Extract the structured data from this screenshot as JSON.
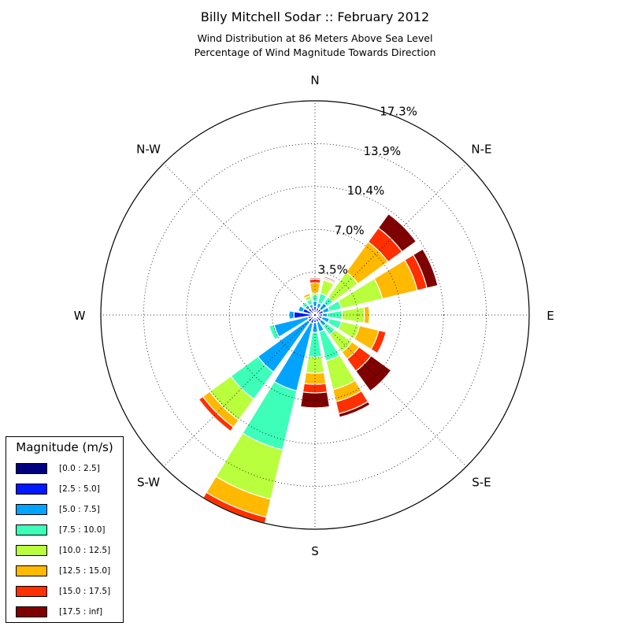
{
  "title": "Billy Mitchell Sodar :: February 2012",
  "subtitle1": "Wind Distribution at 86 Meters Above Sea Level",
  "subtitle2": "Percentage of Wind Magnitude Towards Direction",
  "chart_data": {
    "type": "windrose",
    "units": "percent",
    "rmax": 17.3,
    "ring_labels": [
      "3.5%",
      "7.0%",
      "10.4%",
      "13.9%",
      "17.3%"
    ],
    "ring_values": [
      3.46,
      6.92,
      10.38,
      13.84,
      17.3
    ],
    "direction_labels": [
      "N",
      "N-E",
      "E",
      "S-E",
      "S",
      "S-W",
      "W",
      "N-W"
    ],
    "grid": true,
    "legend_placement": "lower-left",
    "legend_title": "Magnitude (m/s)",
    "bins": [
      {
        "label": "[0.0 : 2.5]",
        "color": "#00007f"
      },
      {
        "label": "[2.5 : 5.0]",
        "color": "#0019ff"
      },
      {
        "label": "[5.0 : 7.5]",
        "color": "#00a4ff"
      },
      {
        "label": "[7.5 : 10.0]",
        "color": "#3dffb9"
      },
      {
        "label": "[10.0 : 12.5]",
        "color": "#b9ff3d"
      },
      {
        "label": "[12.5 : 15.0]",
        "color": "#ffb900"
      },
      {
        "label": "[15.0 : 17.5]",
        "color": "#ff3000"
      },
      {
        "label": "[17.5 : inf]",
        "color": "#7f0000"
      }
    ],
    "sectors": [
      {
        "direction_deg": 0,
        "cumulative": [
          0.3,
          0.7,
          1.1,
          1.6,
          1.8,
          2.6,
          2.9,
          3.0
        ]
      },
      {
        "direction_deg": 22.5,
        "cumulative": [
          0.3,
          0.6,
          1.0,
          1.8,
          2.9,
          3.0,
          3.1,
          3.2
        ]
      },
      {
        "direction_deg": 45,
        "cumulative": [
          0.3,
          0.6,
          1.2,
          1.8,
          4.3,
          7.3,
          8.7,
          10.1
        ]
      },
      {
        "direction_deg": 67.5,
        "cumulative": [
          0.3,
          0.7,
          1.2,
          2.2,
          5.6,
          8.5,
          9.3,
          10.2
        ]
      },
      {
        "direction_deg": 90,
        "cumulative": [
          0.3,
          0.6,
          1.0,
          2.2,
          4.0,
          4.4,
          4.4,
          4.4
        ]
      },
      {
        "direction_deg": 112.5,
        "cumulative": [
          0.3,
          0.6,
          1.2,
          2.2,
          3.7,
          5.3,
          5.9,
          5.9
        ]
      },
      {
        "direction_deg": 135,
        "cumulative": [
          0.3,
          0.6,
          1.1,
          2.0,
          3.7,
          4.4,
          5.6,
          7.6
        ]
      },
      {
        "direction_deg": 157.5,
        "cumulative": [
          0.3,
          0.6,
          1.4,
          3.8,
          6.2,
          7.2,
          8.2,
          8.5
        ]
      },
      {
        "direction_deg": 180,
        "cumulative": [
          0.3,
          0.6,
          1.4,
          3.4,
          4.7,
          5.6,
          6.3,
          7.5
        ]
      },
      {
        "direction_deg": 202.5,
        "cumulative": [
          0.3,
          0.7,
          6.3,
          11.2,
          15.3,
          16.8,
          17.3,
          17.3
        ]
      },
      {
        "direction_deg": 225,
        "cumulative": [
          0.3,
          0.7,
          5.7,
          8.4,
          10.5,
          11.2,
          11.6,
          11.6
        ]
      },
      {
        "direction_deg": 247.5,
        "cumulative": [
          0.3,
          0.6,
          3.4,
          3.8,
          3.8,
          3.8,
          3.8,
          3.8
        ]
      },
      {
        "direction_deg": 270,
        "cumulative": [
          0.3,
          1.7,
          2.1,
          2.1,
          2.1,
          2.1,
          2.1,
          2.1
        ]
      },
      {
        "direction_deg": 292.5,
        "cumulative": [
          0.3,
          1.0,
          1.4,
          1.4,
          1.4,
          1.4,
          1.4,
          1.4
        ]
      },
      {
        "direction_deg": 315,
        "cumulative": [
          0.3,
          0.7,
          1.0,
          1.3,
          1.3,
          1.3,
          1.3,
          1.3
        ]
      },
      {
        "direction_deg": 337.5,
        "cumulative": [
          0.3,
          0.6,
          0.9,
          1.3,
          1.6,
          1.8,
          1.8,
          1.8
        ]
      }
    ]
  }
}
